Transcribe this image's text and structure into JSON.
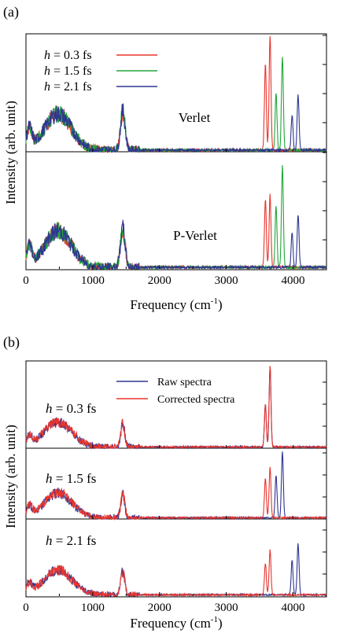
{
  "chart_data": [
    {
      "panel_label": "(a)",
      "type": "line",
      "xlabel": "Frequency (cm",
      "xlabel_sup": "-1",
      "xlabel_close": ")",
      "ylabel": "Intensity (arb. unit)",
      "xlim": [
        0,
        4500
      ],
      "xticks": [
        0,
        1000,
        2000,
        3000,
        4000
      ],
      "yticks_visible": false,
      "grid": false,
      "legend": {
        "placement": "top-left",
        "entries": [
          {
            "italic": "h",
            "rest": " = 0.3 fs",
            "color": "#e8352d"
          },
          {
            "italic": "h",
            "rest": " = 1.5 fs",
            "color": "#22a63a"
          },
          {
            "italic": "h",
            "rest": " = 2.1 fs",
            "color": "#2e3592"
          }
        ]
      },
      "subplots": [
        {
          "label": "Verlet",
          "peaks": [
            {
              "series": "h = 0.3 fs",
              "color": "#e8352d",
              "x": [
                3585,
                3655
              ],
              "h": [
                0.78,
                1.05
              ]
            },
            {
              "series": "h = 1.5 fs",
              "color": "#22a63a",
              "x": [
                3745,
                3840
              ],
              "h": [
                0.52,
                0.85
              ]
            },
            {
              "series": "h = 2.1 fs",
              "color": "#2e3592",
              "x": [
                3985,
                4075
              ],
              "h": [
                0.32,
                0.5
              ]
            }
          ],
          "common": [
            {
              "x": 480,
              "h": 0.33,
              "w": 200
            },
            {
              "x": 1450,
              "h": 0.35,
              "w": 35
            },
            {
              "x": 50,
              "h": 0.18,
              "w": 40
            }
          ]
        },
        {
          "label": "P-Verlet",
          "peaks": [
            {
              "series": "h = 0.3 fs",
              "color": "#e8352d",
              "x": [
                3585,
                3655
              ],
              "h": [
                0.62,
                0.66
              ]
            },
            {
              "series": "h = 1.5 fs",
              "color": "#22a63a",
              "x": [
                3745,
                3840
              ],
              "h": [
                0.56,
                0.92
              ]
            },
            {
              "series": "h = 2.1 fs",
              "color": "#2e3592",
              "x": [
                3985,
                4075
              ],
              "h": [
                0.32,
                0.48
              ]
            }
          ],
          "common": [
            {
              "x": 480,
              "h": 0.33,
              "w": 200
            },
            {
              "x": 1450,
              "h": 0.35,
              "w": 35
            },
            {
              "x": 50,
              "h": 0.18,
              "w": 40
            }
          ]
        }
      ]
    },
    {
      "panel_label": "(b)",
      "type": "line",
      "xlabel": "Frequency (cm",
      "xlabel_sup": "-1",
      "xlabel_close": ")",
      "ylabel": "Intensity (arb. unit)",
      "xlim": [
        0,
        4500
      ],
      "xticks": [
        0,
        1000,
        2000,
        3000,
        4000
      ],
      "yticks_visible": false,
      "grid": false,
      "legend": {
        "placement": "top-center",
        "entries": [
          {
            "text": "Raw spectra",
            "color": "#2e3592"
          },
          {
            "text": "Corrected spectra",
            "color": "#e8352d"
          }
        ]
      },
      "subplots": [
        {
          "italic": "h",
          "rest": " = 0.3 fs",
          "raw": {
            "x": [
              3585,
              3655
            ],
            "h": [
              0.52,
              0.98
            ]
          },
          "corrected": {
            "x": [
              3585,
              3655
            ],
            "h": [
              0.52,
              0.98
            ]
          }
        },
        {
          "italic": "h",
          "rest": " = 1.5 fs",
          "raw": {
            "x": [
              3745,
              3840
            ],
            "h": [
              0.52,
              0.8
            ]
          },
          "corrected": {
            "x": [
              3585,
              3655
            ],
            "h": [
              0.48,
              0.62
            ]
          }
        },
        {
          "italic": "h",
          "rest": " = 2.1 fs",
          "raw": {
            "x": [
              3985,
              4075
            ],
            "h": [
              0.42,
              0.62
            ]
          },
          "corrected": {
            "x": [
              3585,
              3655
            ],
            "h": [
              0.38,
              0.55
            ]
          }
        }
      ]
    }
  ]
}
